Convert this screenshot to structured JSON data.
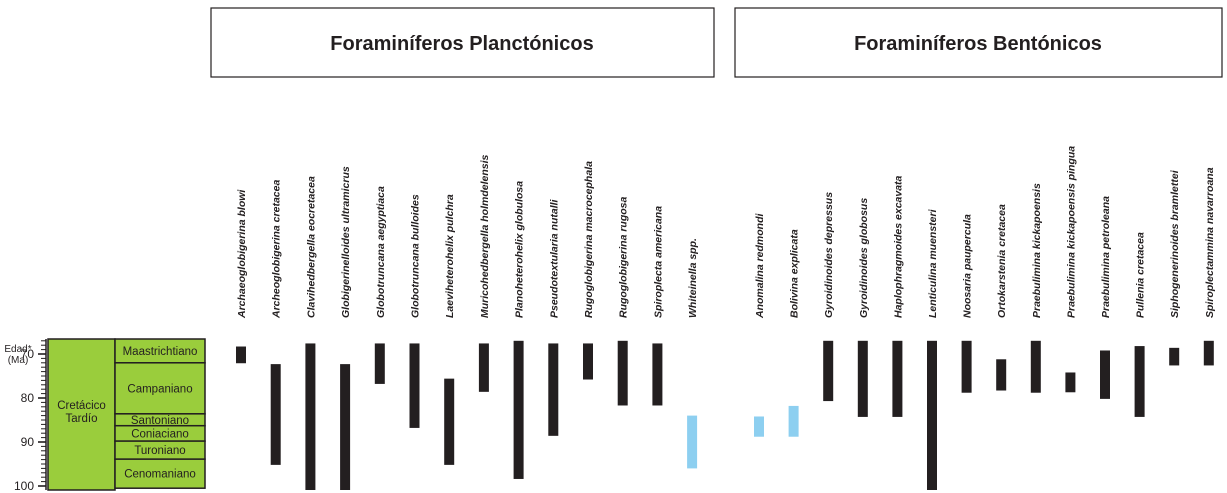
{
  "chart_data": {
    "type": "range-bar",
    "group_titles": [
      "Foraminíferos Planctónicos",
      "Foraminíferos Bentónicos"
    ],
    "y_axis": {
      "label_line1": "Edad*",
      "label_line2": "(Ma)",
      "ticks": [
        70,
        80,
        90,
        100
      ],
      "range": [
        66,
        101
      ]
    },
    "stratigraphy": {
      "period": [
        "Cretácico",
        "Tardío"
      ],
      "stages": [
        {
          "name": "Maastrichtiano",
          "top": 66,
          "bottom": 72
        },
        {
          "name": "Campaniano",
          "top": 72,
          "bottom": 83.6
        },
        {
          "name": "Santoniano",
          "top": 83.6,
          "bottom": 86.3
        },
        {
          "name": "Coniaciano",
          "top": 86.3,
          "bottom": 89.8
        },
        {
          "name": "Turoniano",
          "top": 89.8,
          "bottom": 93.9
        },
        {
          "name": "Cenomaniano",
          "top": 93.9,
          "bottom": 100.5
        }
      ]
    },
    "colors": {
      "dark": "#231f20",
      "light": "#8dcff0",
      "period_fill": "#9acd3c"
    },
    "planktonic": [
      {
        "name": "Archaeoglobigerina blowi",
        "from": 68.3,
        "to": 72.1,
        "color": "dark"
      },
      {
        "name": "Archeoglobigerina cretacea",
        "from": 72.3,
        "to": 95.2,
        "color": "dark"
      },
      {
        "name": "Clavihedbergella eocretacea",
        "from": 67.6,
        "to": 101,
        "color": "dark"
      },
      {
        "name": "Globigerinelloides ultramicrus",
        "from": 72.3,
        "to": 101,
        "color": "dark"
      },
      {
        "name": "Globotruncana aegyptiaca",
        "from": 67.6,
        "to": 76.8,
        "color": "dark"
      },
      {
        "name": "Globotruncana bulloides",
        "from": 67.6,
        "to": 86.8,
        "color": "dark"
      },
      {
        "name": "Laeviheterohelix pulchra",
        "from": 75.6,
        "to": 95.2,
        "color": "dark"
      },
      {
        "name": "Muricohedbergella holmdelensis",
        "from": 67.6,
        "to": 78.6,
        "color": "dark"
      },
      {
        "name": "Planoheterohelix globulosa",
        "from": 67.0,
        "to": 98.4,
        "color": "dark"
      },
      {
        "name": "Pseudotextularia nutalli",
        "from": 67.6,
        "to": 88.6,
        "color": "dark"
      },
      {
        "name": "Rugoglobigerina macrocephala",
        "from": 67.6,
        "to": 75.8,
        "color": "dark"
      },
      {
        "name": "Rugoglobigerina rugosa",
        "from": 67.0,
        "to": 81.7,
        "color": "dark"
      },
      {
        "name": "Spiroplecta americana",
        "from": 67.6,
        "to": 81.7,
        "color": "dark"
      },
      {
        "name": "Whiteinella spp.",
        "from": 84.0,
        "to": 96.0,
        "color": "light"
      }
    ],
    "benthic": [
      {
        "name": "Anomalina redmondi",
        "from": 84.2,
        "to": 88.8,
        "color": "light"
      },
      {
        "name": "Bolivina explicata",
        "from": 81.8,
        "to": 88.8,
        "color": "light"
      },
      {
        "name": "Gyroidinoides depressus",
        "from": 67.0,
        "to": 80.7,
        "color": "dark"
      },
      {
        "name": "Gyroidinoides globosus",
        "from": 67.0,
        "to": 84.3,
        "color": "dark"
      },
      {
        "name": "Haplophragmoides excavata",
        "from": 67.0,
        "to": 84.3,
        "color": "dark"
      },
      {
        "name": "Lenticulina muensteri",
        "from": 67.0,
        "to": 101,
        "color": "dark"
      },
      {
        "name": "Noosaria paupercula",
        "from": 67.0,
        "to": 78.8,
        "color": "dark"
      },
      {
        "name": "Ortokarstenia cretacea",
        "from": 71.2,
        "to": 78.3,
        "color": "dark"
      },
      {
        "name": "Praebulimina kickapoensis",
        "from": 67.0,
        "to": 78.8,
        "color": "dark"
      },
      {
        "name": "Praebulimina kickapoensis pingua",
        "from": 74.2,
        "to": 78.7,
        "color": "dark"
      },
      {
        "name": "Praebulimina petroleana",
        "from": 69.2,
        "to": 80.2,
        "color": "dark"
      },
      {
        "name": "Pullenia cretacea",
        "from": 68.2,
        "to": 84.3,
        "color": "dark"
      },
      {
        "name": "Siphogenerinoides bramlettei",
        "from": 68.6,
        "to": 72.6,
        "color": "dark"
      },
      {
        "name": "Spiroplectammina navarroana",
        "from": 67.0,
        "to": 72.6,
        "color": "dark"
      }
    ]
  }
}
